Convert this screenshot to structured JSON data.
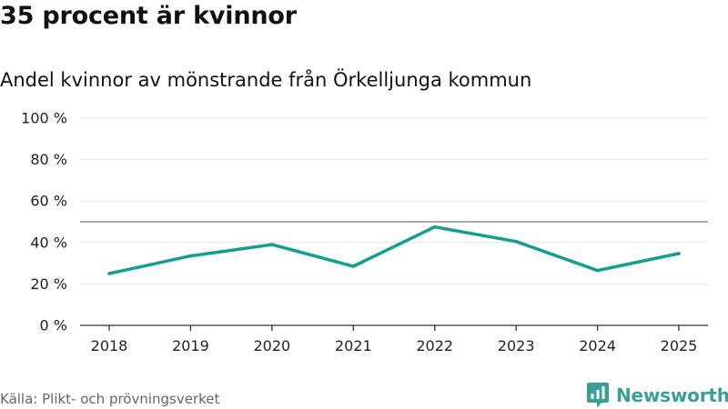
{
  "title": "35 procent är kvinnor",
  "subtitle": "Andel kvinnor av mönstrande från Örkelljunga kommun",
  "source": "Källa: Plikt- och prövningsverket",
  "logo_text": "Newsworthy",
  "logo_icon": "newsworthy-logo-icon",
  "colors": {
    "line": "#139e92",
    "reference_line": "#777777",
    "grid": "#e2e2e2",
    "axis": "#333333",
    "logo": "#3a9e96"
  },
  "chart_data": {
    "type": "line",
    "title": "35 procent är kvinnor",
    "subtitle": "Andel kvinnor av mönstrande från Örkelljunga kommun",
    "xlabel": "",
    "ylabel": "",
    "x": [
      "2018",
      "2019",
      "2020",
      "2021",
      "2022",
      "2023",
      "2024",
      "2025"
    ],
    "series": [
      {
        "values": [
          25,
          33.5,
          39,
          28.5,
          47.5,
          40.5,
          26.5,
          34.7
        ]
      }
    ],
    "reference_line": 50,
    "ylim": [
      0,
      100
    ],
    "yticks": [
      0,
      20,
      40,
      60,
      80,
      100
    ],
    "ytick_labels": [
      "0 %",
      "20 %",
      "40 %",
      "60 %",
      "80 %",
      "100 %"
    ],
    "grid": true,
    "legend": "none"
  }
}
